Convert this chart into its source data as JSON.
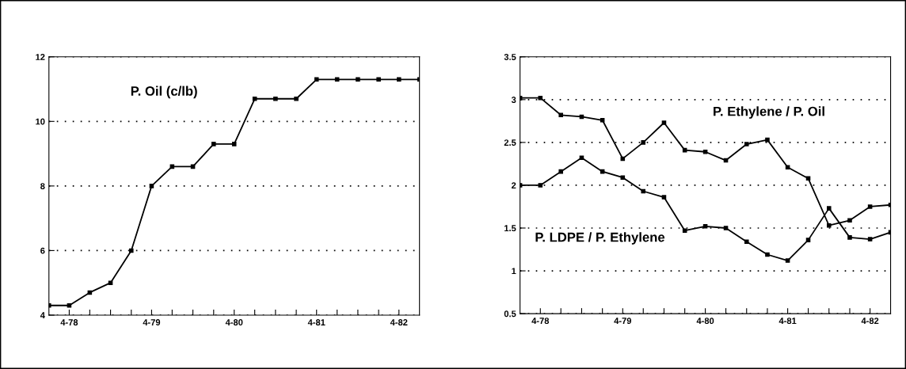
{
  "chart_data": [
    {
      "type": "line",
      "x": [
        "1978-01",
        "1978-04",
        "1978-07",
        "1978-10",
        "1979-01",
        "1979-04",
        "1979-07",
        "1979-10",
        "1980-01",
        "1980-04",
        "1980-07",
        "1980-10",
        "1981-01",
        "1981-04",
        "1981-07",
        "1981-10",
        "1982-01",
        "1982-04",
        "1982-07"
      ],
      "series": [
        {
          "name": "P. Oil (c/lb)",
          "color": "#000000",
          "values": [
            4.3,
            4.3,
            4.7,
            5.0,
            6.0,
            8.0,
            8.6,
            8.6,
            9.3,
            9.3,
            10.7,
            10.7,
            10.7,
            11.3,
            11.3,
            11.3,
            11.3,
            11.3,
            11.3
          ]
        }
      ],
      "xlim": [
        "1978-01",
        "1982-07"
      ],
      "xticks": [
        {
          "value": "1978-04",
          "label": "4-78"
        },
        {
          "value": "1978-07",
          "label": null
        },
        {
          "value": "1978-10",
          "label": null
        },
        {
          "value": "1979-01",
          "label": null
        },
        {
          "value": "1979-04",
          "label": "4-79"
        },
        {
          "value": "1979-07",
          "label": null
        },
        {
          "value": "1979-10",
          "label": null
        },
        {
          "value": "1980-01",
          "label": null
        },
        {
          "value": "1980-04",
          "label": "4-80"
        },
        {
          "value": "1980-07",
          "label": null
        },
        {
          "value": "1980-10",
          "label": null
        },
        {
          "value": "1981-01",
          "label": null
        },
        {
          "value": "1981-04",
          "label": "4-81"
        },
        {
          "value": "1981-07",
          "label": null
        },
        {
          "value": "1981-10",
          "label": null
        },
        {
          "value": "1982-01",
          "label": null
        },
        {
          "value": "1982-04",
          "label": "4-82"
        }
      ],
      "ylim": [
        4,
        12
      ],
      "yticks": [
        4,
        6,
        8,
        10,
        12
      ],
      "grid": "y",
      "legend": false,
      "marker": "square",
      "line_style": "solid"
    },
    {
      "type": "line",
      "x": [
        "1978-01",
        "1978-04",
        "1978-07",
        "1978-10",
        "1979-01",
        "1979-04",
        "1979-07",
        "1979-10",
        "1980-01",
        "1980-04",
        "1980-07",
        "1980-10",
        "1981-01",
        "1981-04",
        "1981-07",
        "1981-10",
        "1982-01",
        "1982-04",
        "1982-07"
      ],
      "series": [
        {
          "name": "P. Ethylene / P. Oil",
          "color": "#000000",
          "values": [
            3.02,
            3.02,
            2.82,
            2.8,
            2.76,
            2.31,
            2.5,
            2.73,
            2.41,
            2.39,
            2.29,
            2.48,
            2.53,
            2.21,
            2.08,
            1.53,
            1.59,
            1.75,
            1.77
          ]
        },
        {
          "name": "P. LDPE / P. Ethylene",
          "color": "#000000",
          "values": [
            2.0,
            2.0,
            2.16,
            2.32,
            2.16,
            2.09,
            1.93,
            1.86,
            1.47,
            1.52,
            1.5,
            1.34,
            1.19,
            1.12,
            1.36,
            1.73,
            1.39,
            1.37,
            1.45
          ]
        }
      ],
      "xlim": [
        "1978-01",
        "1982-07"
      ],
      "xticks": [
        {
          "value": "1978-04",
          "label": "4-78"
        },
        {
          "value": "1978-07",
          "label": null
        },
        {
          "value": "1978-10",
          "label": null
        },
        {
          "value": "1979-01",
          "label": null
        },
        {
          "value": "1979-04",
          "label": "4-79"
        },
        {
          "value": "1979-07",
          "label": null
        },
        {
          "value": "1979-10",
          "label": null
        },
        {
          "value": "1980-01",
          "label": null
        },
        {
          "value": "1980-04",
          "label": "4-80"
        },
        {
          "value": "1980-07",
          "label": null
        },
        {
          "value": "1980-10",
          "label": null
        },
        {
          "value": "1981-01",
          "label": null
        },
        {
          "value": "1981-04",
          "label": "4-81"
        },
        {
          "value": "1981-07",
          "label": null
        },
        {
          "value": "1981-10",
          "label": null
        },
        {
          "value": "1982-01",
          "label": null
        },
        {
          "value": "1982-04",
          "label": "4-82"
        }
      ],
      "ylim": [
        0.5,
        3.5
      ],
      "yticks": [
        0.5,
        1,
        1.5,
        2,
        2.5,
        3,
        3.5
      ],
      "grid": "y",
      "legend": false,
      "marker": "square",
      "line_style": "solid"
    }
  ]
}
